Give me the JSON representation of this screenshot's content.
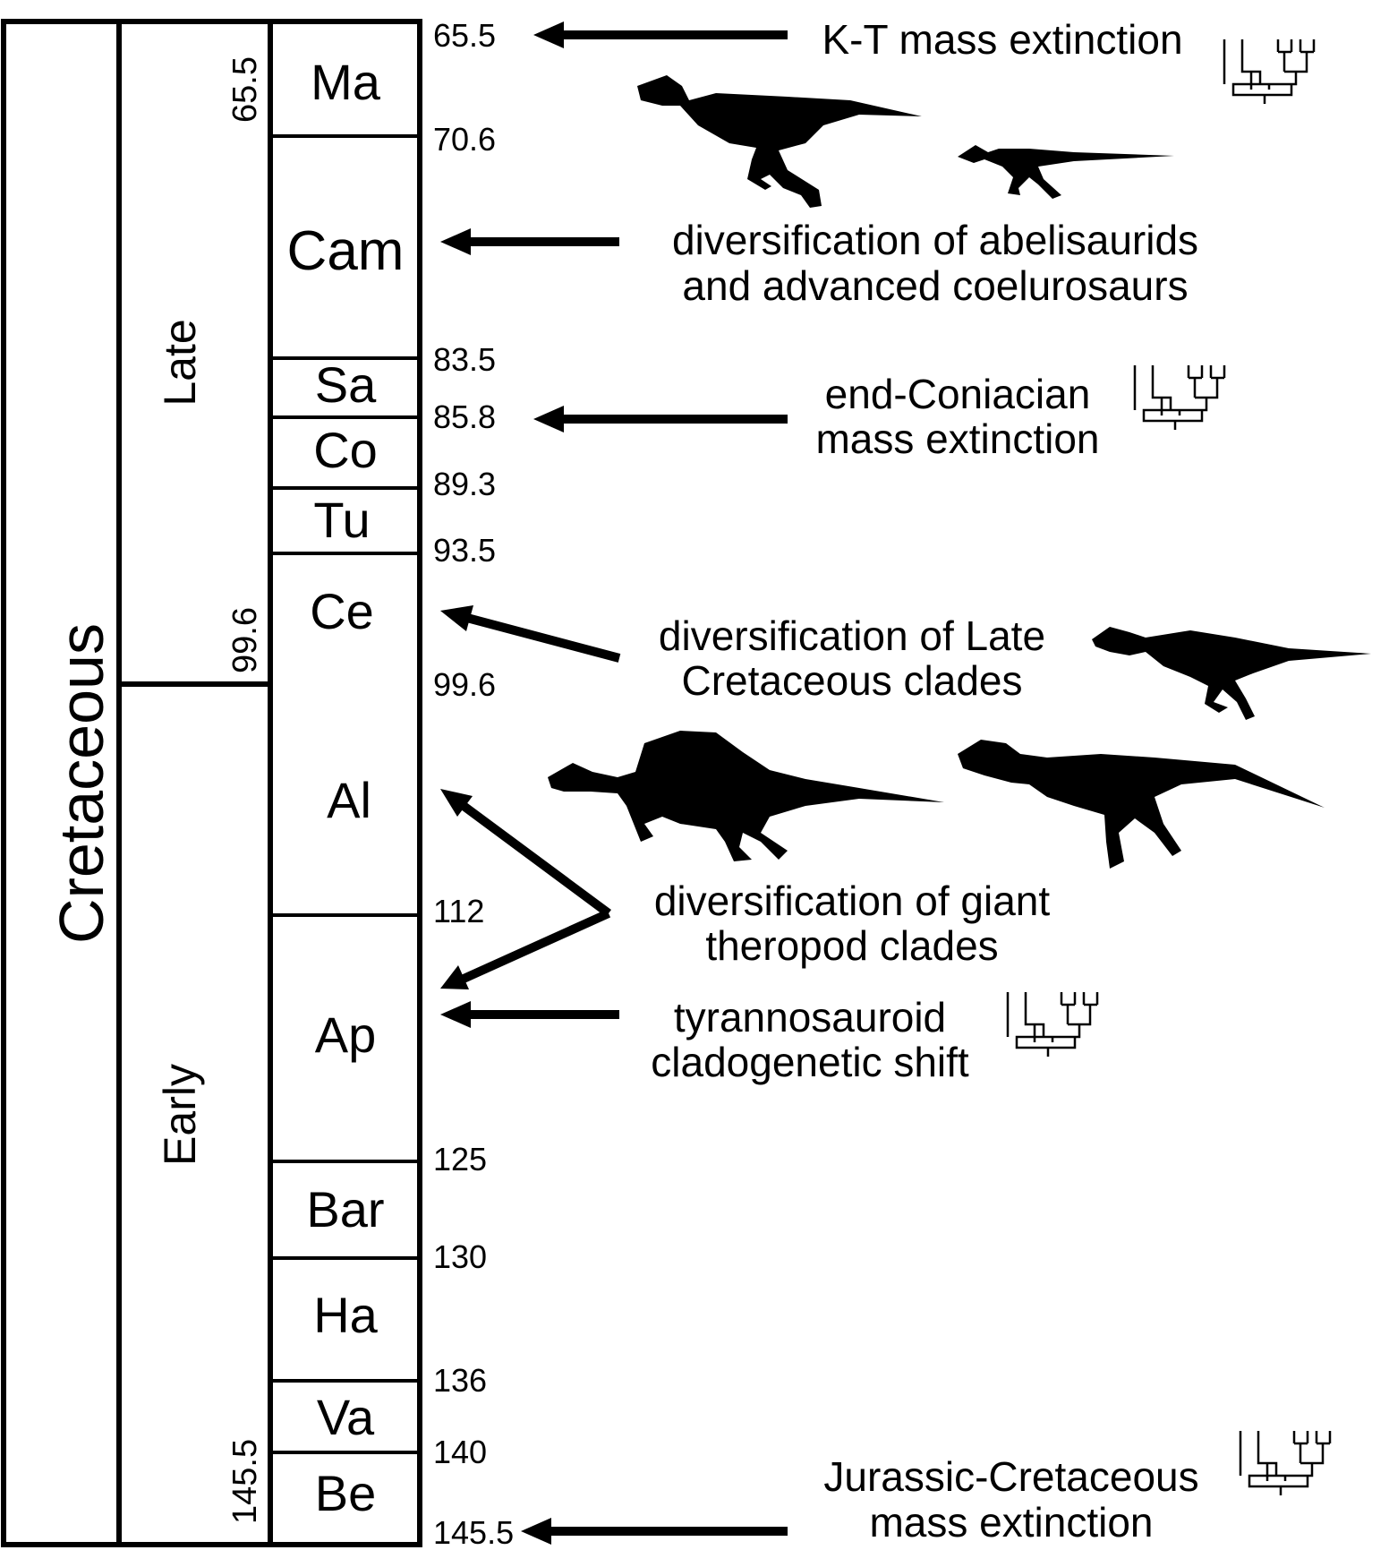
{
  "period": "Cretaceous",
  "epochs": [
    {
      "label": "Late",
      "top_age": "65.5",
      "bottom_age": "99.6"
    },
    {
      "label": "Early",
      "top_age": "",
      "bottom_age": "145.5"
    }
  ],
  "stages": [
    {
      "abbr": "Ma"
    },
    {
      "abbr": "Cam"
    },
    {
      "abbr": "Sa"
    },
    {
      "abbr": "Co"
    },
    {
      "abbr": "Tu"
    },
    {
      "abbr": "Ce"
    },
    {
      "abbr": "Al"
    },
    {
      "abbr": "Ap"
    },
    {
      "abbr": "Bar"
    },
    {
      "abbr": "Ha"
    },
    {
      "abbr": "Va"
    },
    {
      "abbr": "Be"
    }
  ],
  "boundary_ages": [
    "65.5",
    "70.6",
    "83.5",
    "85.8",
    "89.3",
    "93.5",
    "99.6",
    "112",
    "125",
    "130",
    "136",
    "140",
    "145.5"
  ],
  "events": [
    {
      "lines": [
        "K-T mass extinction"
      ],
      "icon": "cladogram-icon"
    },
    {
      "lines": [
        "diversification of abelisaurids",
        "and advanced coelurosaurs"
      ],
      "icon": "theropod-silhouettes"
    },
    {
      "lines": [
        "end-Coniacian",
        "mass extinction"
      ],
      "icon": "cladogram-icon"
    },
    {
      "lines": [
        "diversification of Late",
        "Cretaceous clades"
      ],
      "icon": "theropod-silhouette"
    },
    {
      "lines": [
        "diversification of giant",
        "theropod clades"
      ],
      "icon": "spinosaur-and-allosaur-silhouettes"
    },
    {
      "lines": [
        "tyrannosauroid",
        "cladogenetic shift"
      ],
      "icon": "cladogram-icon"
    },
    {
      "lines": [
        "Jurassic-Cretaceous",
        "mass extinction"
      ],
      "icon": "cladogram-icon"
    }
  ]
}
